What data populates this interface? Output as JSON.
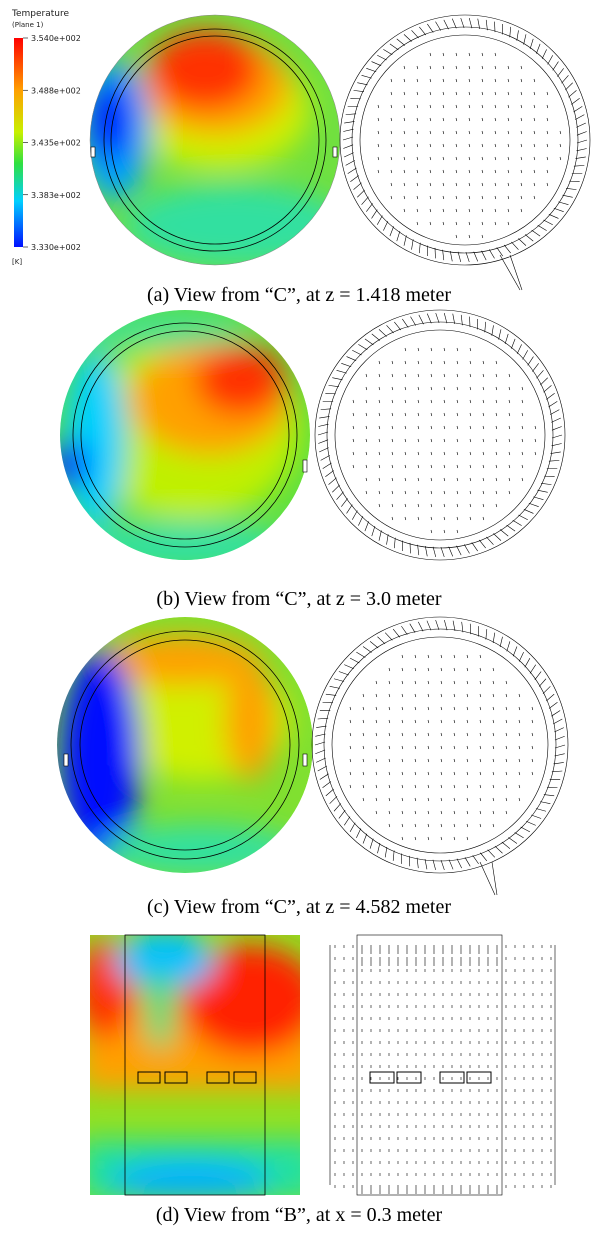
{
  "legend": {
    "title": "Temperature",
    "subtitle": "(Plane 1)",
    "ticks": [
      "3.540e+002",
      "3.488e+002",
      "3.435e+002",
      "3.383e+002",
      "3.330e+002"
    ],
    "unit": "[K]"
  },
  "panels": [
    {
      "caption": "(a) View from “C”, at z = 1.418 meter"
    },
    {
      "caption": "(b) View from “C”, at z = 3.0 meter"
    },
    {
      "caption": "(c) View from “C”, at z = 4.582 meter"
    },
    {
      "caption": "(d) View from “B”, at x = 0.3 meter"
    }
  ]
}
